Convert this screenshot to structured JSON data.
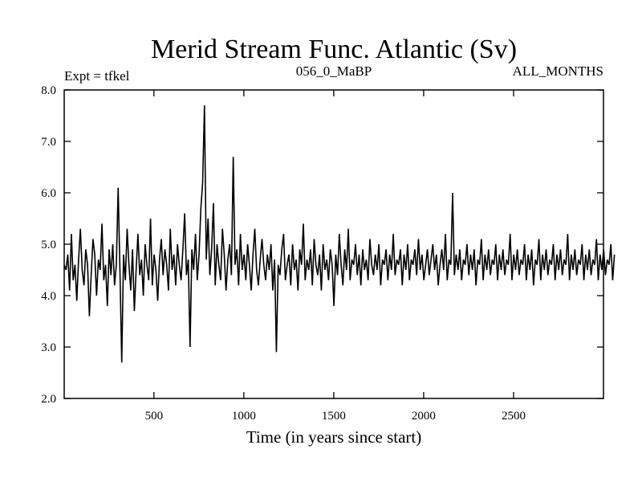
{
  "chart_data": {
    "type": "line",
    "title": "Merid Stream Func. Atlantic (Sv)",
    "subtitle_left": "Expt = tfkel",
    "subtitle_center": "056_0_MaBP",
    "subtitle_right": "ALL_MONTHS",
    "xlabel": "Time (in years since start)",
    "ylabel": "",
    "xlim": [
      1,
      3000
    ],
    "ylim": [
      2.0,
      8.0
    ],
    "xticks": [
      500,
      1000,
      1500,
      2000,
      2500
    ],
    "yticks": [
      2.0,
      3.0,
      4.0,
      5.0,
      6.0,
      7.0,
      8.0
    ],
    "ytick_labels": [
      "2.0",
      "3.0",
      "4.0",
      "5.0",
      "6.0",
      "7.0",
      "8.0"
    ],
    "grid": false,
    "legend": "none",
    "series": [
      {
        "color": "#000000",
        "x_step": 10,
        "x_start": 1,
        "values": [
          4.6,
          4.5,
          4.8,
          4.1,
          5.2,
          4.3,
          4.6,
          3.9,
          4.7,
          5.3,
          4.5,
          4.2,
          4.9,
          4.6,
          3.6,
          4.4,
          5.1,
          4.8,
          4.0,
          4.7,
          4.5,
          5.4,
          4.3,
          4.6,
          3.8,
          4.9,
          4.4,
          5.0,
          4.2,
          4.6,
          6.1,
          4.5,
          2.7,
          4.8,
          4.3,
          5.3,
          4.6,
          4.1,
          4.9,
          3.7,
          4.5,
          5.2,
          4.4,
          4.7,
          4.0,
          5.0,
          4.6,
          4.3,
          5.5,
          4.2,
          4.8,
          4.5,
          3.9,
          4.7,
          5.1,
          4.4,
          4.9,
          4.6,
          4.1,
          5.3,
          4.5,
          4.8,
          4.2,
          5.0,
          4.6,
          4.3,
          4.9,
          5.6,
          4.4,
          4.7,
          3.0,
          4.9,
          4.5,
          5.2,
          4.3,
          4.8,
          5.7,
          6.2,
          7.7,
          4.7,
          5.5,
          4.4,
          4.9,
          5.8,
          4.2,
          5.0,
          4.6,
          4.3,
          5.3,
          4.8,
          4.1,
          4.7,
          5.0,
          4.4,
          6.7,
          4.6,
          4.9,
          4.2,
          5.2,
          4.5,
          4.8,
          4.3,
          5.0,
          4.6,
          4.1,
          4.8,
          5.3,
          4.5,
          4.2,
          4.7,
          5.1,
          4.6,
          4.3,
          4.8,
          4.5,
          5.0,
          4.1,
          4.7,
          2.9,
          4.6,
          4.4,
          4.9,
          5.2,
          4.3,
          4.6,
          4.8,
          4.2,
          5.0,
          4.5,
          4.7,
          4.1,
          4.9,
          4.6,
          5.4,
          4.3,
          4.7,
          4.5,
          4.9,
          4.2,
          5.1,
          4.6,
          4.4,
          4.8,
          4.1,
          5.0,
          4.5,
          4.7,
          4.3,
          4.9,
          4.6,
          3.8,
          4.8,
          4.4,
          5.2,
          4.6,
          4.2,
          4.9,
          4.5,
          5.3,
          4.3,
          4.7,
          4.6,
          5.0,
          4.4,
          4.8,
          4.2,
          4.9,
          4.5,
          4.7,
          4.3,
          5.1,
          4.6,
          4.4,
          4.8,
          4.5,
          5.0,
          4.2,
          4.7,
          4.6,
          4.9,
          4.3,
          4.8,
          4.5,
          5.2,
          4.4,
          4.7,
          4.6,
          4.9,
          4.2,
          4.8,
          4.5,
          5.0,
          4.3,
          4.7,
          4.6,
          4.9,
          4.4,
          5.1,
          4.5,
          4.8,
          4.3,
          4.6,
          4.9,
          4.4,
          4.7,
          5.0,
          4.5,
          4.8,
          4.2,
          4.6,
          4.9,
          4.5,
          5.2,
          4.3,
          4.7,
          4.6,
          6.0,
          4.4,
          4.8,
          4.5,
          4.9,
          4.3,
          4.7,
          4.6,
          5.0,
          4.4,
          4.8,
          4.5,
          4.9,
          4.2,
          4.7,
          4.6,
          5.1,
          4.3,
          4.8,
          4.5,
          4.9,
          4.4,
          4.7,
          4.6,
          5.0,
          4.3,
          4.8,
          4.5,
          4.9,
          4.4,
          4.7,
          4.6,
          5.2,
          4.3,
          4.8,
          4.5,
          4.9,
          4.4,
          4.7,
          4.6,
          5.0,
          4.3,
          4.8,
          4.5,
          4.9,
          4.2,
          4.7,
          4.6,
          5.1,
          4.3,
          4.8,
          4.5,
          4.9,
          4.4,
          4.7,
          4.6,
          5.0,
          4.3,
          4.8,
          4.5,
          4.9,
          4.4,
          4.7,
          4.6,
          5.2,
          4.3,
          4.8,
          4.5,
          4.9,
          4.4,
          4.7,
          4.6,
          5.0,
          4.3,
          4.8,
          4.5,
          4.9,
          4.4,
          4.7,
          4.6,
          5.1,
          4.3,
          4.8,
          4.5,
          4.9,
          4.4,
          4.7,
          4.6,
          5.0,
          4.3,
          4.8
        ]
      }
    ]
  }
}
